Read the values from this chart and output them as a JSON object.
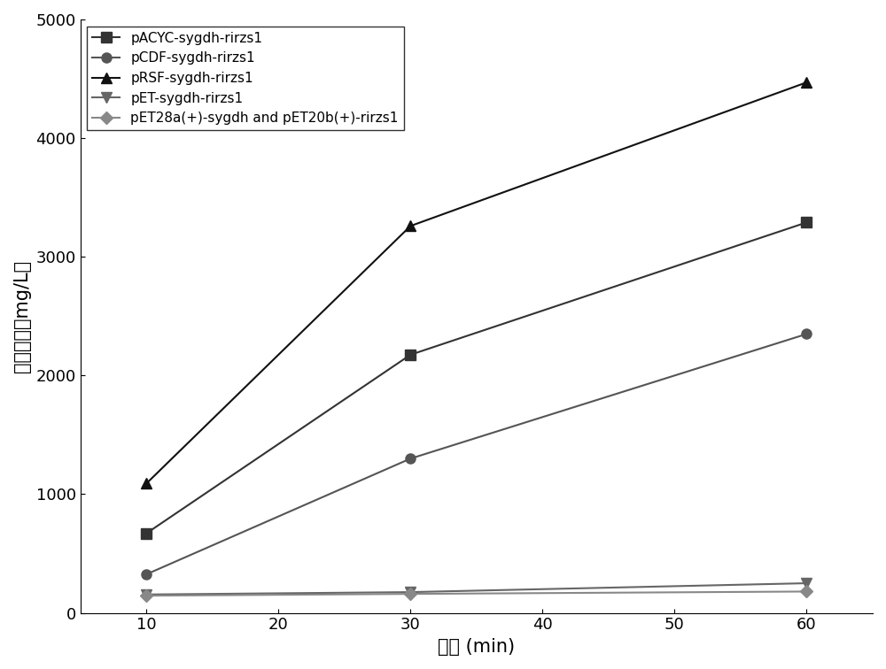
{
  "x": [
    10,
    30,
    60
  ],
  "series": [
    {
      "label": "pACYC-sygdh-rirzs1",
      "values": [
        670,
        2175,
        3290
      ],
      "color": "#333333",
      "marker": "s",
      "linestyle": "-",
      "linewidth": 1.5,
      "markersize": 8
    },
    {
      "label": "pCDF-sygdh-rirzs1",
      "values": [
        325,
        1300,
        2350
      ],
      "color": "#555555",
      "marker": "o",
      "linestyle": "-",
      "linewidth": 1.5,
      "markersize": 8
    },
    {
      "label": "pRSF-sygdh-rirzs1",
      "values": [
        1090,
        3260,
        4470
      ],
      "color": "#111111",
      "marker": "^",
      "linestyle": "-",
      "linewidth": 1.5,
      "markersize": 9
    },
    {
      "label": "pET-sygdh-rirzs1",
      "values": [
        155,
        175,
        250
      ],
      "color": "#666666",
      "marker": "v",
      "linestyle": "-",
      "linewidth": 1.5,
      "markersize": 9
    },
    {
      "label": "pET28a(+)-sygdh and pET20b(+)-rirzs1",
      "values": [
        145,
        160,
        180
      ],
      "color": "#888888",
      "marker": "D",
      "linestyle": "-",
      "linewidth": 1.5,
      "markersize": 7
    }
  ],
  "xlabel": "时间 (min)",
  "ylabel_line1": "覆盆子酮（mg/L）",
  "xlim": [
    5,
    65
  ],
  "ylim": [
    0,
    5000
  ],
  "xticks": [
    10,
    20,
    30,
    40,
    50,
    60
  ],
  "yticks": [
    0,
    1000,
    2000,
    3000,
    4000,
    5000
  ],
  "legend_loc": "upper left",
  "background_color": "#ffffff",
  "label_fontsize": 15,
  "tick_fontsize": 13,
  "legend_fontsize": 11
}
